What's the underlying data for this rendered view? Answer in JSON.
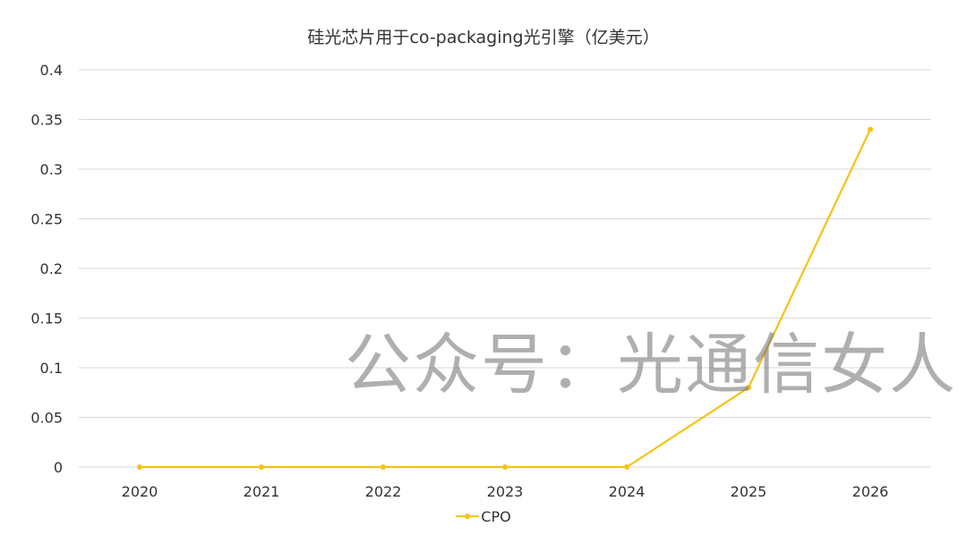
{
  "chart_data": {
    "type": "line",
    "title": "硅光芯片用于co-packaging光引擎（亿美元）",
    "xlabel": "",
    "ylabel": "",
    "categories": [
      "2020",
      "2021",
      "2022",
      "2023",
      "2024",
      "2025",
      "2026"
    ],
    "series": [
      {
        "name": "CPO",
        "values": [
          0,
          0,
          0,
          0,
          0,
          0.08,
          0.34
        ],
        "color": "#F5C217"
      }
    ],
    "ylim": [
      0,
      0.4
    ],
    "yticks": [
      "0",
      "0.05",
      "0.1",
      "0.15",
      "0.2",
      "0.25",
      "0.3",
      "0.35",
      "0.4"
    ],
    "grid": true,
    "legend_position": "bottom"
  },
  "watermark": "公众号：光通信女人",
  "colors": {
    "series_line": "#F5C217",
    "gridline": "#D9D9D9",
    "axis_text": "#333333"
  }
}
